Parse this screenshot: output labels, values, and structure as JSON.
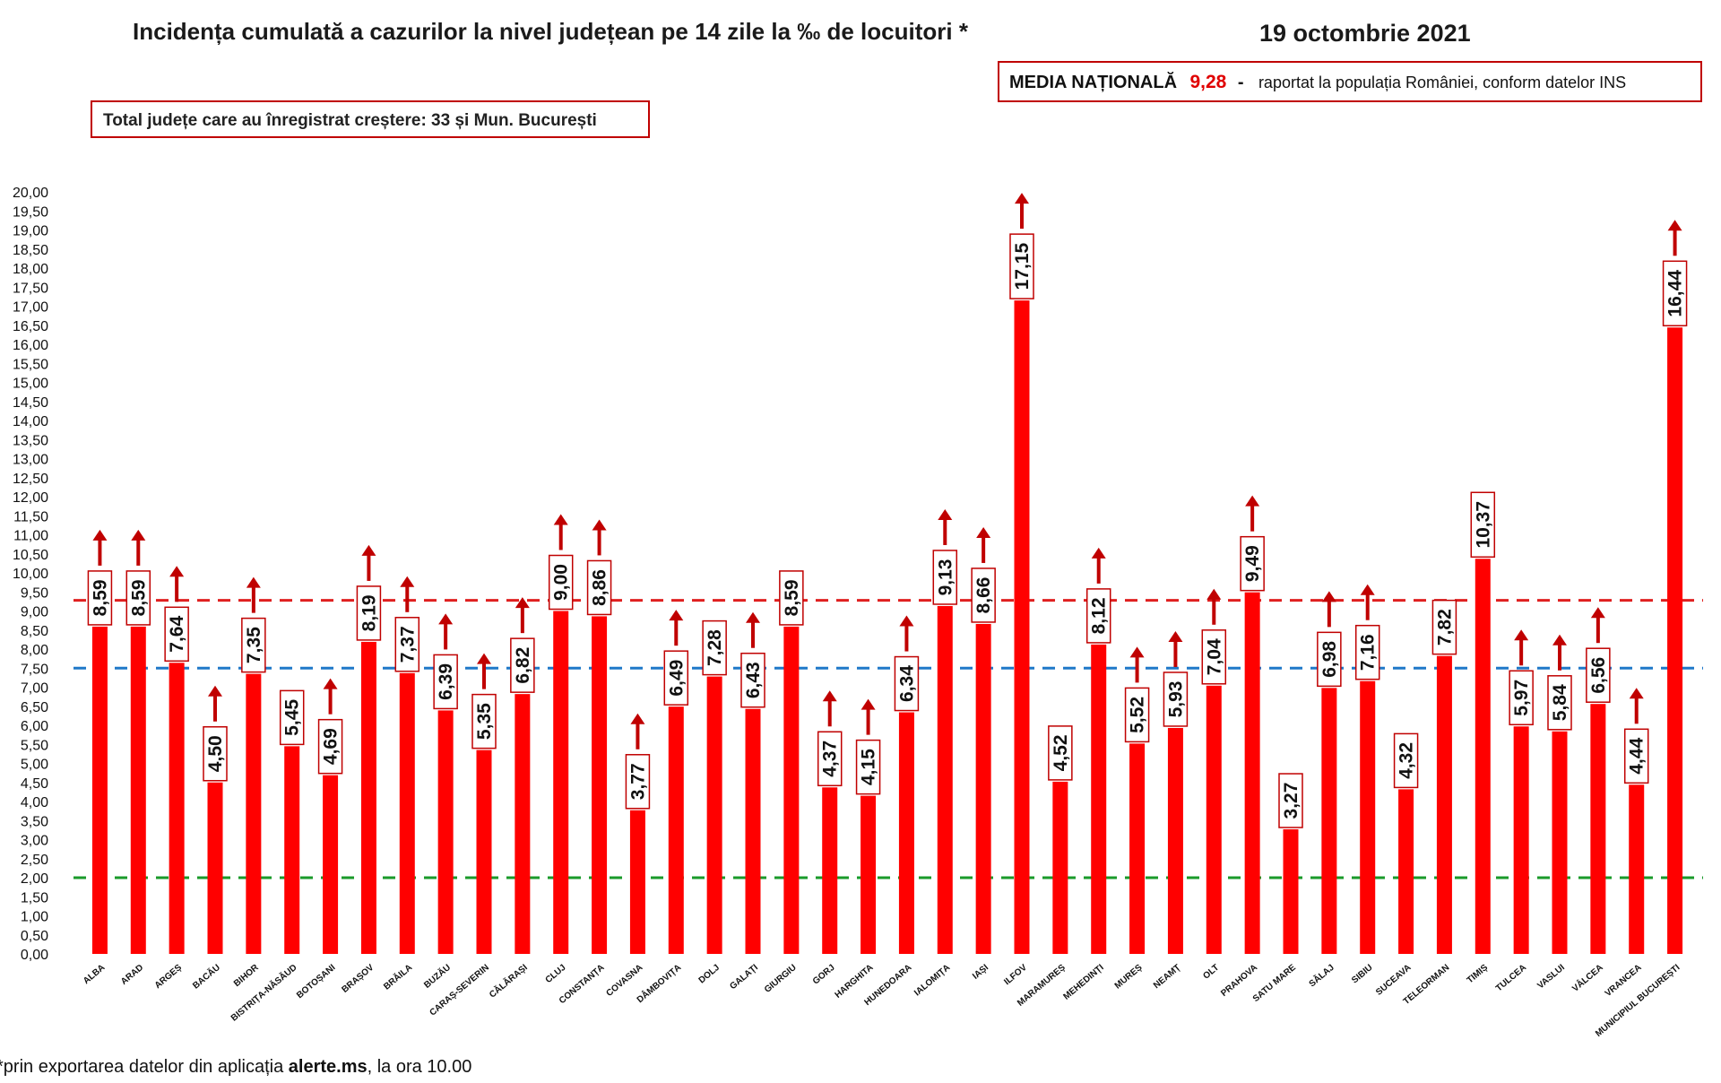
{
  "title": "Incidența cumulată a cazurilor la nivel județean pe 14 zile la ‰ de locuitori *",
  "date": "19 octombrie 2021",
  "total_box": "Total județe care au înregistrat creștere:  33 și Mun. București",
  "media": {
    "label": "MEDIA NAȚIONALĂ",
    "value": "9,28",
    "dash": "-",
    "rest": "raportat la populația României, conform datelor INS"
  },
  "footer": {
    "prefix": "*prin exportarea datelor din aplicația ",
    "bold": "alerte.ms",
    "suffix": ", la ora 10.00"
  },
  "colors": {
    "bar": "#ff0000",
    "arrow": "#c00000",
    "label_border": "#c00000",
    "line_red": "#e02020",
    "line_blue": "#1f78c8",
    "line_green": "#1a9a2a"
  },
  "chart_data": {
    "type": "bar",
    "ylim": [
      0,
      20
    ],
    "ytick_step": 0.5,
    "ytick_labels": [
      "0,00",
      "0,50",
      "1,00",
      "1,50",
      "2,00",
      "2,50",
      "3,00",
      "3,50",
      "4,00",
      "4,50",
      "5,00",
      "5,50",
      "6,00",
      "6,50",
      "7,00",
      "7,50",
      "8,00",
      "8,50",
      "9,00",
      "9,50",
      "10,00",
      "10,50",
      "11,00",
      "11,50",
      "12,00",
      "12,50",
      "13,00",
      "13,50",
      "14,00",
      "14,50",
      "15,00",
      "15,50",
      "16,00",
      "16,50",
      "17,00",
      "17,50",
      "18,00",
      "18,50",
      "19,00",
      "19,50",
      "20,00"
    ],
    "grid": false,
    "reference_lines": [
      {
        "value": 9.28,
        "color": "red",
        "style": "dashed"
      },
      {
        "value": 7.5,
        "color": "blue",
        "style": "dashed"
      },
      {
        "value": 2.0,
        "color": "green",
        "style": "dashed"
      }
    ],
    "categories": [
      "ALBA",
      "ARAD",
      "ARGEȘ",
      "BACĂU",
      "BIHOR",
      "BISTRIȚA-NĂSĂUD",
      "BOTOȘANI",
      "BRAȘOV",
      "BRĂILA",
      "BUZĂU",
      "CARAȘ-SEVERIN",
      "CĂLĂRAȘI",
      "CLUJ",
      "CONSTANȚA",
      "COVASNA",
      "DÂMBOVIȚA",
      "DOLJ",
      "GALAȚI",
      "GIURGIU",
      "GORJ",
      "HARGHITA",
      "HUNEDOARA",
      "IALOMIȚA",
      "IAȘI",
      "ILFOV",
      "MARAMUREȘ",
      "MEHEDINȚI",
      "MUREȘ",
      "NEAMȚ",
      "OLT",
      "PRAHOVA",
      "SATU MARE",
      "SĂLAJ",
      "SIBIU",
      "SUCEAVA",
      "TELEORMAN",
      "TIMIȘ",
      "TULCEA",
      "VASLUI",
      "VÂLCEA",
      "VRANCEA",
      "MUNICIPIUL BUCUREȘTI"
    ],
    "values": [
      8.59,
      8.59,
      7.64,
      4.5,
      7.35,
      5.45,
      4.69,
      8.19,
      7.37,
      6.39,
      5.35,
      6.82,
      9.0,
      8.86,
      3.77,
      6.49,
      7.28,
      6.43,
      8.59,
      4.37,
      4.15,
      6.34,
      9.13,
      8.66,
      17.15,
      4.52,
      8.12,
      5.52,
      5.93,
      7.04,
      9.49,
      3.27,
      6.98,
      7.16,
      4.32,
      7.82,
      10.37,
      5.97,
      5.84,
      6.56,
      4.44,
      16.44
    ],
    "labels": [
      "8,59",
      "8,59",
      "7,64",
      "4,50",
      "7,35",
      "5,45",
      "4,69",
      "8,19",
      "7,37",
      "6,39",
      "5,35",
      "6,82",
      "9,00",
      "8,86",
      "3,77",
      "6,49",
      "7,28",
      "6,43",
      "8,59",
      "4,37",
      "4,15",
      "6,34",
      "9,13",
      "8,66",
      "17,15",
      "4,52",
      "8,12",
      "5,52",
      "5,93",
      "7,04",
      "9,49",
      "3,27",
      "6,98",
      "7,16",
      "4,32",
      "7,82",
      "10,37",
      "5,97",
      "5,84",
      "6,56",
      "4,44",
      "16,44"
    ],
    "increase": [
      true,
      true,
      true,
      true,
      true,
      false,
      true,
      true,
      true,
      true,
      true,
      true,
      true,
      true,
      true,
      true,
      false,
      true,
      false,
      true,
      true,
      true,
      true,
      true,
      true,
      false,
      true,
      true,
      true,
      true,
      true,
      false,
      true,
      true,
      false,
      false,
      false,
      true,
      true,
      true,
      true,
      true
    ]
  }
}
